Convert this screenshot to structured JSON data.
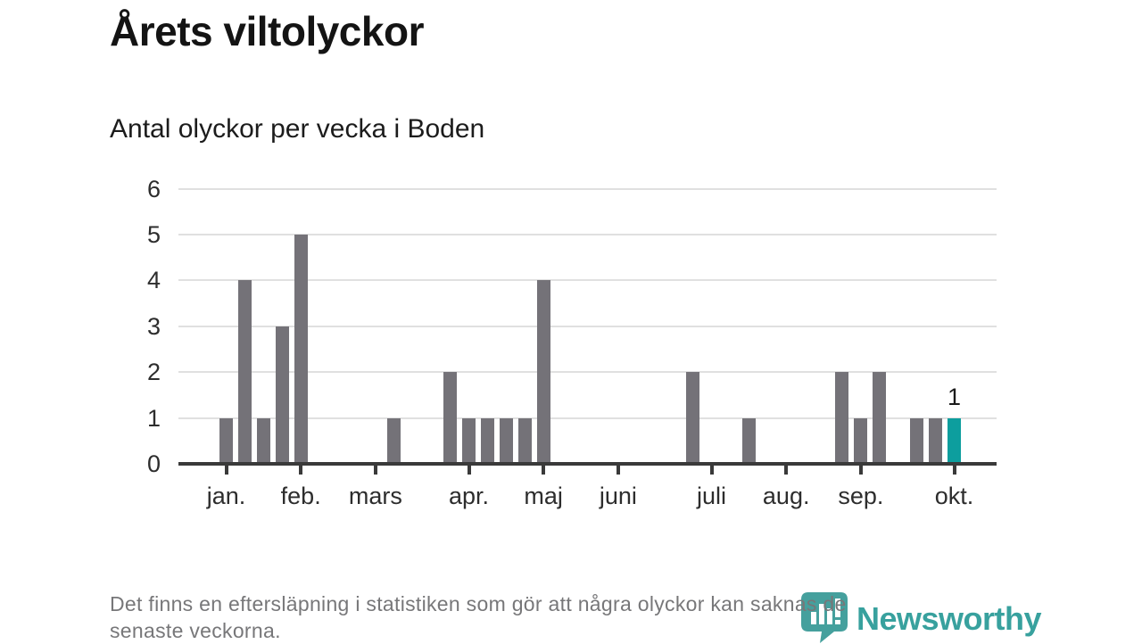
{
  "chart_data": {
    "type": "bar",
    "title": "Årets viltolyckor",
    "subtitle": "Antal olyckor per vecka i Boden",
    "x_unit": "vecka",
    "values": [
      1,
      4,
      1,
      3,
      5,
      0,
      0,
      0,
      0,
      1,
      0,
      0,
      2,
      1,
      1,
      1,
      1,
      4,
      0,
      0,
      0,
      0,
      0,
      0,
      0,
      2,
      0,
      0,
      1,
      0,
      0,
      0,
      0,
      2,
      1,
      2,
      0,
      1,
      1,
      1
    ],
    "highlight_index": 39,
    "highlight_label": "1",
    "month_ticks": [
      {
        "label": "jan.",
        "week": 0
      },
      {
        "label": "feb.",
        "week": 4
      },
      {
        "label": "mars",
        "week": 8
      },
      {
        "label": "apr.",
        "week": 13
      },
      {
        "label": "maj",
        "week": 17
      },
      {
        "label": "juni",
        "week": 21
      },
      {
        "label": "juli",
        "week": 26
      },
      {
        "label": "aug.",
        "week": 30
      },
      {
        "label": "sep.",
        "week": 34
      },
      {
        "label": "okt.",
        "week": 39
      }
    ],
    "ylim": [
      0,
      6
    ],
    "yticks": [
      0,
      1,
      2,
      3,
      4,
      5,
      6
    ],
    "grid": true,
    "legend": "none",
    "bar_color": "#747278",
    "highlight_color": "#0d9e9e",
    "gridline_color": "#e0e0e0",
    "axis_color": "#3a3a3a"
  },
  "footer": {
    "lines": [
      "Det finns en eftersläpning i statistiken som gör att några olyckor kan saknas de",
      "senaste veckorna."
    ]
  },
  "branding": {
    "name": "Newsworthy",
    "icon": "newsworthy-speech-bubble-chart-icon",
    "color": "#38a19e",
    "icon_fill": "#45a09d"
  }
}
